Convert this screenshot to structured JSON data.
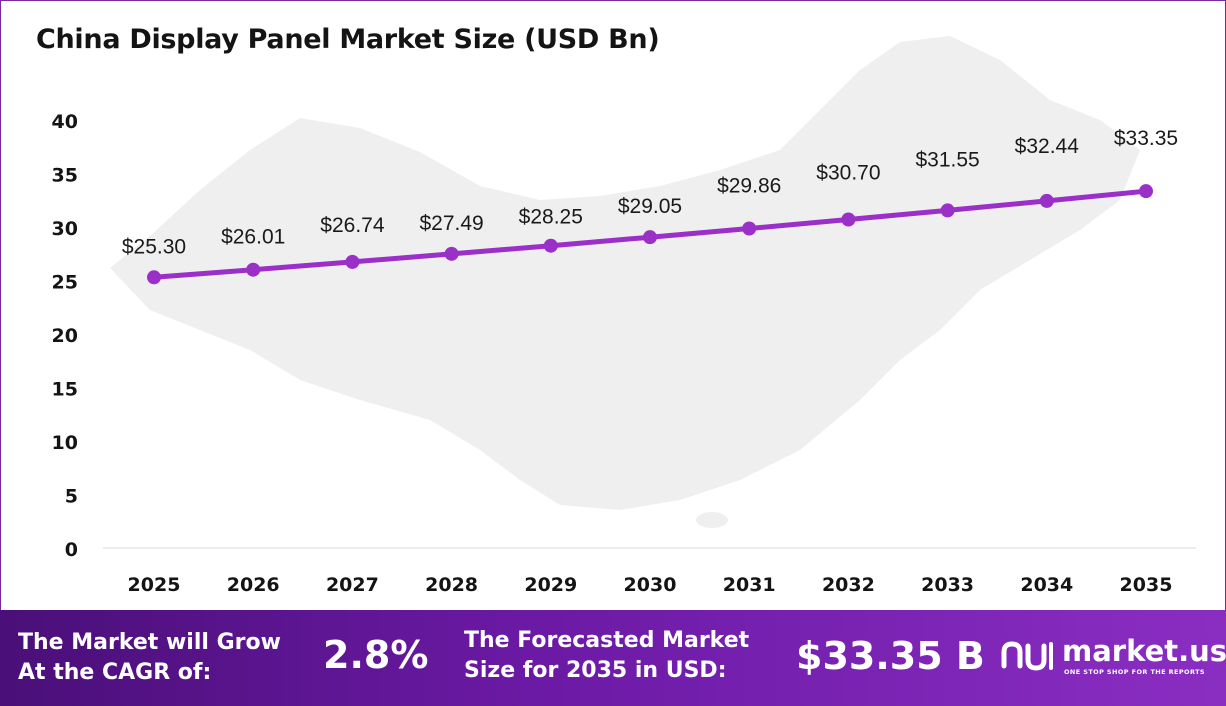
{
  "colors": {
    "line": "#9b30c8",
    "footer_start": "#4a0f78",
    "footer_end": "#8a2ec2",
    "map": "#efefef"
  },
  "chart_data": {
    "type": "line",
    "title": "China Display Panel Market Size (USD Bn)",
    "xlabel": "",
    "ylabel": "",
    "categories": [
      "2025",
      "2026",
      "2027",
      "2028",
      "2029",
      "2030",
      "2031",
      "2032",
      "2033",
      "2034",
      "2035"
    ],
    "values": [
      25.3,
      26.01,
      26.74,
      27.49,
      28.25,
      29.05,
      29.86,
      30.7,
      31.55,
      32.44,
      33.35
    ],
    "data_labels": [
      "$25.30",
      "$26.01",
      "$26.74",
      "$27.49",
      "$28.25",
      "$29.05",
      "$29.86",
      "$30.70",
      "$31.55",
      "$32.44",
      "$33.35"
    ],
    "ylim": [
      0,
      40
    ],
    "yticks": [
      0,
      5,
      10,
      15,
      20,
      25,
      30,
      35,
      40
    ],
    "grid": false,
    "legend": "none"
  },
  "footer": {
    "cagr_label_line1": "The Market will Grow",
    "cagr_label_line2": "At the CAGR of:",
    "cagr_value": "2.8%",
    "forecast_label_line1": "The Forecasted Market",
    "forecast_label_line2": "Size for 2035 in USD:",
    "forecast_value": "$33.35 B",
    "logo_text": "market.us",
    "logo_tagline": "ONE STOP SHOP FOR THE REPORTS"
  }
}
